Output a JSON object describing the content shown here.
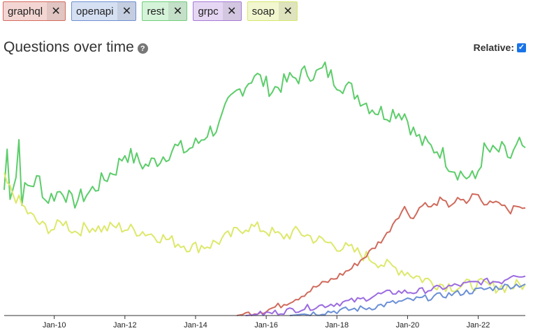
{
  "tags": [
    {
      "label": "graphql",
      "bg": "#f3d6d3",
      "border": "#d46b5f"
    },
    {
      "label": "openapi",
      "bg": "#d5e0f3",
      "border": "#6f8fd0"
    },
    {
      "label": "rest",
      "bg": "#d5f3d9",
      "border": "#6fcf7a"
    },
    {
      "label": "grpc",
      "bg": "#e5d7f3",
      "border": "#a679d8"
    },
    {
      "label": "soap",
      "bg": "#f2f7cf",
      "border": "#d6e86a"
    }
  ],
  "close_glyph": "✕",
  "title": "Questions over time",
  "help_glyph": "?",
  "relative_label": "Relative:",
  "relative_checked": true,
  "check_glyph": "✓",
  "chart_data": {
    "type": "line",
    "x_ticks": [
      "Jan-10",
      "Jan-12",
      "Jan-14",
      "Jan-16",
      "Jan-18",
      "Jan-20",
      "Jan-22"
    ],
    "x_range": [
      "2008-08",
      "2023-05"
    ],
    "grid": false,
    "series": [
      {
        "name": "rest",
        "color": "#5ccd6a",
        "points": [
          [
            "2008-08",
            0.48
          ],
          [
            "2008-09",
            0.63
          ],
          [
            "2008-10",
            0.47
          ],
          [
            "2008-12",
            0.53
          ],
          [
            "2009-01",
            0.67
          ],
          [
            "2009-02",
            0.45
          ],
          [
            "2009-03",
            0.48
          ],
          [
            "2009-05",
            0.5
          ],
          [
            "2009-08",
            0.52
          ],
          [
            "2009-10",
            0.44
          ],
          [
            "2010-01",
            0.46
          ],
          [
            "2010-04",
            0.48
          ],
          [
            "2010-07",
            0.43
          ],
          [
            "2010-10",
            0.45
          ],
          [
            "2011-01",
            0.47
          ],
          [
            "2011-06",
            0.52
          ],
          [
            "2011-10",
            0.56
          ],
          [
            "2012-01",
            0.62
          ],
          [
            "2012-04",
            0.6
          ],
          [
            "2012-08",
            0.57
          ],
          [
            "2013-01",
            0.6
          ],
          [
            "2013-06",
            0.64
          ],
          [
            "2013-10",
            0.63
          ],
          [
            "2014-02",
            0.66
          ],
          [
            "2014-05",
            0.7
          ],
          [
            "2014-09",
            0.72
          ],
          [
            "2014-12",
            0.8
          ],
          [
            "2015-03",
            0.85
          ],
          [
            "2015-06",
            0.88
          ],
          [
            "2015-09",
            0.92
          ],
          [
            "2015-12",
            0.89
          ],
          [
            "2016-03",
            0.86
          ],
          [
            "2016-06",
            0.88
          ],
          [
            "2016-09",
            0.9
          ],
          [
            "2016-12",
            0.91
          ],
          [
            "2017-03",
            0.93
          ],
          [
            "2017-06",
            0.92
          ],
          [
            "2017-09",
            0.94
          ],
          [
            "2017-12",
            0.9
          ],
          [
            "2018-03",
            0.88
          ],
          [
            "2018-06",
            0.86
          ],
          [
            "2018-09",
            0.83
          ],
          [
            "2018-12",
            0.8
          ],
          [
            "2019-03",
            0.78
          ],
          [
            "2019-06",
            0.77
          ],
          [
            "2019-09",
            0.78
          ],
          [
            "2019-12",
            0.77
          ],
          [
            "2020-03",
            0.7
          ],
          [
            "2020-06",
            0.66
          ],
          [
            "2020-09",
            0.64
          ],
          [
            "2020-12",
            0.63
          ],
          [
            "2021-03",
            0.58
          ],
          [
            "2021-06",
            0.55
          ],
          [
            "2021-09",
            0.53
          ],
          [
            "2021-12",
            0.52
          ],
          [
            "2022-03",
            0.63
          ],
          [
            "2022-06",
            0.62
          ],
          [
            "2022-09",
            0.63
          ],
          [
            "2022-12",
            0.6
          ],
          [
            "2023-03",
            0.65
          ],
          [
            "2023-05",
            0.64
          ]
        ]
      },
      {
        "name": "soap",
        "color": "#dde86a",
        "points": [
          [
            "2008-08",
            0.52
          ],
          [
            "2008-10",
            0.48
          ],
          [
            "2008-12",
            0.45
          ],
          [
            "2009-02",
            0.42
          ],
          [
            "2009-05",
            0.38
          ],
          [
            "2009-09",
            0.34
          ],
          [
            "2010-01",
            0.33
          ],
          [
            "2010-04",
            0.36
          ],
          [
            "2010-08",
            0.32
          ],
          [
            "2011-01",
            0.34
          ],
          [
            "2011-06",
            0.33
          ],
          [
            "2011-10",
            0.34
          ],
          [
            "2012-02",
            0.33
          ],
          [
            "2012-07",
            0.32
          ],
          [
            "2013-01",
            0.3
          ],
          [
            "2013-06",
            0.28
          ],
          [
            "2013-12",
            0.26
          ],
          [
            "2014-06",
            0.27
          ],
          [
            "2014-12",
            0.3
          ],
          [
            "2015-06",
            0.34
          ],
          [
            "2015-12",
            0.33
          ],
          [
            "2016-06",
            0.3
          ],
          [
            "2016-12",
            0.32
          ],
          [
            "2017-06",
            0.29
          ],
          [
            "2017-12",
            0.27
          ],
          [
            "2018-06",
            0.25
          ],
          [
            "2018-12",
            0.22
          ],
          [
            "2019-06",
            0.19
          ],
          [
            "2019-12",
            0.17
          ],
          [
            "2020-06",
            0.14
          ],
          [
            "2020-12",
            0.12
          ],
          [
            "2021-06",
            0.11
          ],
          [
            "2021-12",
            0.12
          ],
          [
            "2022-06",
            0.11
          ],
          [
            "2022-12",
            0.11
          ],
          [
            "2023-05",
            0.12
          ]
        ]
      },
      {
        "name": "graphql",
        "color": "#d06a5c",
        "points": [
          [
            "2015-03",
            0.0
          ],
          [
            "2015-08",
            0.01
          ],
          [
            "2016-01",
            0.02
          ],
          [
            "2016-06",
            0.04
          ],
          [
            "2016-12",
            0.07
          ],
          [
            "2017-06",
            0.11
          ],
          [
            "2017-12",
            0.14
          ],
          [
            "2018-06",
            0.18
          ],
          [
            "2018-12",
            0.24
          ],
          [
            "2019-06",
            0.31
          ],
          [
            "2019-09",
            0.37
          ],
          [
            "2019-12",
            0.41
          ],
          [
            "2020-03",
            0.37
          ],
          [
            "2020-06",
            0.43
          ],
          [
            "2020-09",
            0.41
          ],
          [
            "2020-12",
            0.44
          ],
          [
            "2021-03",
            0.42
          ],
          [
            "2021-06",
            0.44
          ],
          [
            "2021-09",
            0.43
          ],
          [
            "2021-12",
            0.47
          ],
          [
            "2022-03",
            0.42
          ],
          [
            "2022-06",
            0.44
          ],
          [
            "2022-09",
            0.43
          ],
          [
            "2022-12",
            0.4
          ],
          [
            "2023-03",
            0.42
          ],
          [
            "2023-05",
            0.41
          ]
        ]
      },
      {
        "name": "grpc",
        "color": "#9b6be0",
        "points": [
          [
            "2015-06",
            0.0
          ],
          [
            "2016-03",
            0.01
          ],
          [
            "2016-09",
            0.02
          ],
          [
            "2017-03",
            0.03
          ],
          [
            "2017-09",
            0.04
          ],
          [
            "2018-03",
            0.05
          ],
          [
            "2018-09",
            0.06
          ],
          [
            "2019-03",
            0.08
          ],
          [
            "2019-09",
            0.09
          ],
          [
            "2020-03",
            0.09
          ],
          [
            "2020-09",
            0.1
          ],
          [
            "2021-03",
            0.11
          ],
          [
            "2021-09",
            0.12
          ],
          [
            "2022-03",
            0.13
          ],
          [
            "2022-09",
            0.13
          ],
          [
            "2023-01",
            0.16
          ],
          [
            "2023-05",
            0.15
          ]
        ]
      },
      {
        "name": "openapi",
        "color": "#6b8fd6",
        "points": [
          [
            "2016-09",
            0.0
          ],
          [
            "2017-06",
            0.01
          ],
          [
            "2018-03",
            0.02
          ],
          [
            "2018-12",
            0.03
          ],
          [
            "2019-09",
            0.05
          ],
          [
            "2020-03",
            0.06
          ],
          [
            "2020-09",
            0.07
          ],
          [
            "2021-03",
            0.08
          ],
          [
            "2021-09",
            0.09
          ],
          [
            "2022-03",
            0.1
          ],
          [
            "2022-09",
            0.11
          ],
          [
            "2023-05",
            0.12
          ]
        ]
      }
    ]
  }
}
